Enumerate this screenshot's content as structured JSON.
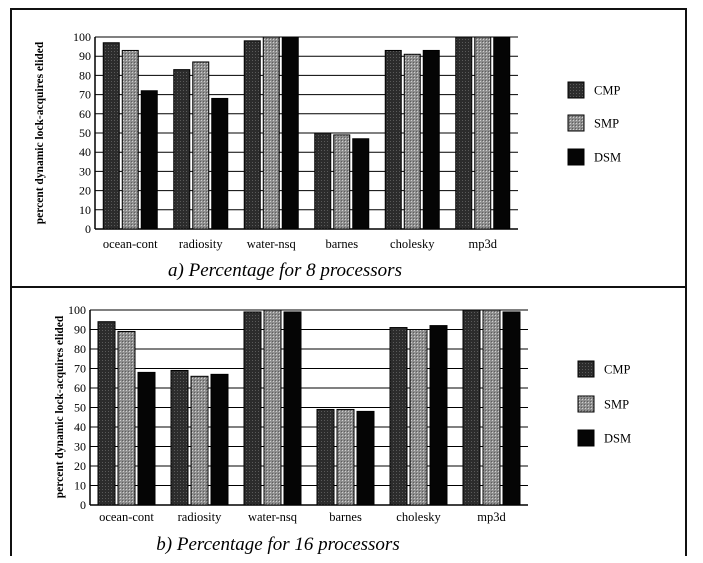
{
  "colors": {
    "CMP": "#2a2a2a",
    "SMP": "#9a9a9a",
    "DSM": "#050505"
  },
  "chart_data": [
    {
      "type": "bar",
      "caption": "a) Percentage for 8 processors",
      "ylabel": "percent dynamic lock-acquires elided",
      "categories": [
        "ocean-cont",
        "radiosity",
        "water-nsq",
        "barnes",
        "cholesky",
        "mp3d"
      ],
      "ylim": [
        0,
        100
      ],
      "yticks": [
        "0",
        "10",
        "20",
        "30",
        "40",
        "50",
        "60",
        "70",
        "80",
        "90",
        "100"
      ],
      "grid": true,
      "legend_position": "right",
      "series": [
        {
          "name": "CMP",
          "values": [
            97,
            83,
            98,
            50,
            93,
            100
          ]
        },
        {
          "name": "SMP",
          "values": [
            93,
            87,
            100,
            49,
            91,
            100
          ]
        },
        {
          "name": "DSM",
          "values": [
            72,
            68,
            100,
            47,
            93,
            100
          ]
        }
      ]
    },
    {
      "type": "bar",
      "caption": "b) Percentage for 16 processors",
      "ylabel": "percent dynamic lock-acquires elided",
      "categories": [
        "ocean-cont",
        "radiosity",
        "water-nsq",
        "barnes",
        "cholesky",
        "mp3d"
      ],
      "ylim": [
        0,
        100
      ],
      "yticks": [
        "0",
        "10",
        "20",
        "30",
        "40",
        "50",
        "60",
        "70",
        "80",
        "90",
        "100"
      ],
      "grid": true,
      "legend_position": "right",
      "series": [
        {
          "name": "CMP",
          "values": [
            94,
            69,
            99,
            49,
            91,
            100
          ]
        },
        {
          "name": "SMP",
          "values": [
            89,
            66,
            100,
            49,
            90,
            100
          ]
        },
        {
          "name": "DSM",
          "values": [
            68,
            67,
            99,
            48,
            92,
            99
          ]
        }
      ]
    }
  ]
}
